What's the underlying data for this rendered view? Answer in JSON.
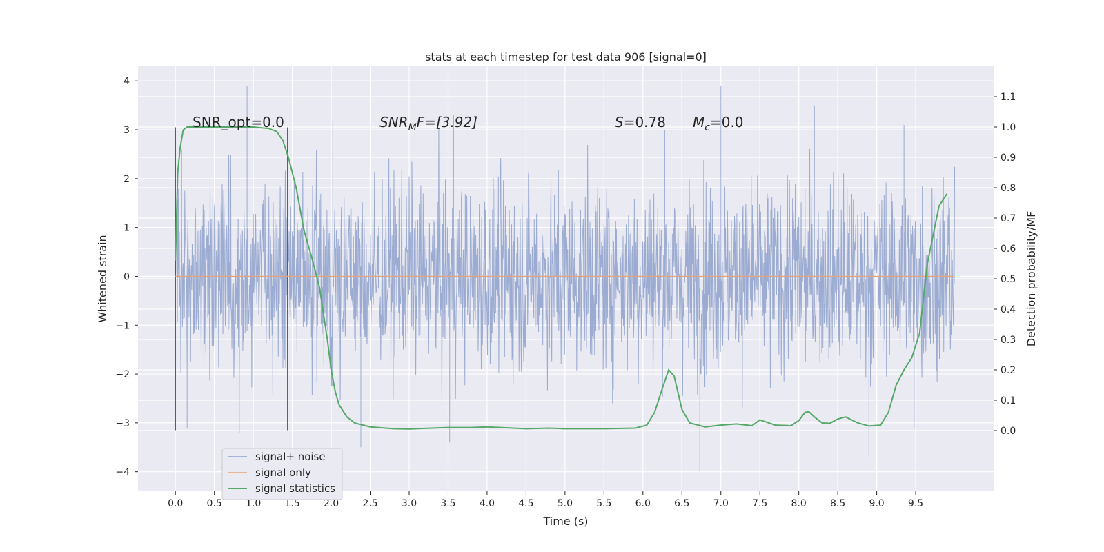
{
  "chart_data": {
    "type": "line",
    "title": "stats at each timestep for test data 906 [signal=0]",
    "xlabel": "Time (s)",
    "ylabel": "Whitened strain",
    "ylabel_right": "Detection probability/MF",
    "xlim": [
      -0.48,
      10.5
    ],
    "ylim": [
      -4.4,
      4.3
    ],
    "ylim_right": [
      -0.2,
      1.2
    ],
    "grid": true,
    "x_ticks": [
      "0.0",
      "0.5",
      "1.0",
      "1.5",
      "2.0",
      "2.5",
      "3.0",
      "3.5",
      "4.0",
      "4.5",
      "5.0",
      "5.5",
      "6.0",
      "6.5",
      "7.0",
      "7.5",
      "8.0",
      "8.5",
      "9.0",
      "9.5"
    ],
    "y_ticks": [
      "4",
      "3",
      "2",
      "1",
      "0",
      "−1",
      "−2",
      "−3",
      "−4"
    ],
    "y_tick_values": [
      4,
      3,
      2,
      1,
      0,
      -1,
      -2,
      -3,
      -4
    ],
    "y_right_ticks": [
      "1.1",
      "1.0",
      "0.9",
      "0.8",
      "0.7",
      "0.6",
      "0.5",
      "0.4",
      "0.3",
      "0.2",
      "0.1",
      "0.0"
    ],
    "y_right_tick_values": [
      1.1,
      1.0,
      0.9,
      0.8,
      0.7,
      0.6,
      0.5,
      0.4,
      0.3,
      0.2,
      0.1,
      0.0
    ],
    "annotations": {
      "snr_opt": "SNR_opt=0.0",
      "snr_mf_main": "SNR",
      "snr_mf_sub": "M",
      "snr_mf_rest": "F=[3.92]",
      "s_main": "S",
      "s_rest": "=0.78",
      "mc_main": "M",
      "mc_sub": "c",
      "mc_rest": "=0.0"
    },
    "vertical_lines_x": [
      0.0,
      1.44
    ],
    "vertical_lines_yrange": [
      -3.15,
      3.05
    ],
    "series": [
      {
        "name": "signal+ noise",
        "color": "#8da0cb",
        "x_range": [
          0.0,
          10.0
        ],
        "typical_amplitude": 1.2,
        "peak_samples": [
          {
            "x": 0.08,
            "y": 2.6
          },
          {
            "x": 0.15,
            "y": -3.1
          },
          {
            "x": 0.92,
            "y": 3.9
          },
          {
            "x": 0.82,
            "y": -3.2
          },
          {
            "x": 2.02,
            "y": 3.2
          },
          {
            "x": 2.38,
            "y": -3.5
          },
          {
            "x": 3.52,
            "y": -3.4
          },
          {
            "x": 3.57,
            "y": 3.3
          },
          {
            "x": 6.28,
            "y": 3.0
          },
          {
            "x": 6.73,
            "y": -4.0
          },
          {
            "x": 7.0,
            "y": 3.9
          },
          {
            "x": 8.2,
            "y": 3.5
          },
          {
            "x": 8.9,
            "y": -3.7
          },
          {
            "x": 9.35,
            "y": 3.1
          },
          {
            "x": 9.48,
            "y": -3.1
          }
        ]
      },
      {
        "name": "signal only",
        "color": "#e6a47a",
        "x": [
          0.0,
          10.0
        ],
        "y": [
          0.0,
          0.0
        ]
      },
      {
        "name": "signal statistics",
        "color": "#55a868",
        "axis": "right",
        "x": [
          0.0,
          0.03,
          0.06,
          0.1,
          0.15,
          0.25,
          0.5,
          0.8,
          1.0,
          1.2,
          1.3,
          1.38,
          1.45,
          1.55,
          1.65,
          1.75,
          1.85,
          1.95,
          2.0,
          2.05,
          2.1,
          2.2,
          2.3,
          2.5,
          2.8,
          3.0,
          3.2,
          3.5,
          3.8,
          4.0,
          4.5,
          4.8,
          5.0,
          5.5,
          5.9,
          6.05,
          6.15,
          6.25,
          6.33,
          6.4,
          6.5,
          6.6,
          6.8,
          7.0,
          7.2,
          7.4,
          7.5,
          7.7,
          7.9,
          8.0,
          8.08,
          8.13,
          8.2,
          8.3,
          8.4,
          8.5,
          8.6,
          8.75,
          8.9,
          9.05,
          9.15,
          9.25,
          9.35,
          9.45,
          9.55,
          9.65,
          9.8,
          9.9
        ],
        "y": [
          0.56,
          0.85,
          0.93,
          0.99,
          1.0,
          1.0,
          1.0,
          1.0,
          1.0,
          0.995,
          0.985,
          0.955,
          0.9,
          0.8,
          0.66,
          0.57,
          0.47,
          0.3,
          0.2,
          0.13,
          0.085,
          0.045,
          0.025,
          0.012,
          0.006,
          0.005,
          0.007,
          0.01,
          0.01,
          0.012,
          0.006,
          0.008,
          0.006,
          0.006,
          0.008,
          0.018,
          0.06,
          0.14,
          0.2,
          0.18,
          0.07,
          0.025,
          0.012,
          0.018,
          0.022,
          0.016,
          0.035,
          0.018,
          0.016,
          0.033,
          0.06,
          0.062,
          0.045,
          0.025,
          0.024,
          0.038,
          0.045,
          0.026,
          0.015,
          0.018,
          0.06,
          0.15,
          0.2,
          0.24,
          0.32,
          0.55,
          0.74,
          0.78
        ]
      }
    ]
  },
  "legend": {
    "items": [
      {
        "label": "signal+ noise",
        "color": "#8da0cb"
      },
      {
        "label": "signal only",
        "color": "#e6a47a"
      },
      {
        "label": "signal statistics",
        "color": "#55a868"
      }
    ]
  }
}
